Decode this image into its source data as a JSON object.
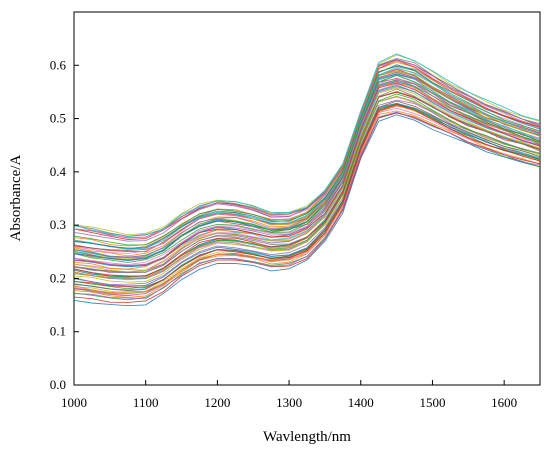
{
  "chart_data": {
    "type": "line",
    "title": "",
    "xlabel": "Wavlength/nm",
    "ylabel": "Absorbance/A",
    "xlim": [
      1000,
      1650
    ],
    "ylim": [
      0,
      0.7
    ],
    "x_ticks": [
      1000,
      1100,
      1200,
      1300,
      1400,
      1500,
      1600
    ],
    "x_tick_labels": [
      "1000",
      "1100",
      "1200",
      "1300",
      "1400",
      "1500",
      "1600"
    ],
    "y_ticks": [
      0.0,
      0.1,
      0.2,
      0.3,
      0.4,
      0.5,
      0.6
    ],
    "y_tick_labels": [
      "0.0",
      "0.1",
      "0.2",
      "0.3",
      "0.4",
      "0.5",
      "0.6"
    ],
    "grid": false,
    "legend": "none",
    "series_count": 60,
    "x": [
      1000,
      1025,
      1050,
      1075,
      1100,
      1125,
      1150,
      1175,
      1200,
      1225,
      1250,
      1275,
      1300,
      1325,
      1350,
      1375,
      1400,
      1425,
      1450,
      1475,
      1500,
      1525,
      1550,
      1575,
      1600,
      1625,
      1650
    ],
    "series": [
      {
        "values": [
          0.17,
          0.165,
          0.16,
          0.158,
          0.16,
          0.18,
          0.205,
          0.225,
          0.235,
          0.235,
          0.23,
          0.222,
          0.225,
          0.24,
          0.275,
          0.33,
          0.43,
          0.5,
          0.51,
          0.5,
          0.485,
          0.47,
          0.455,
          0.44,
          0.43,
          0.42,
          0.41
        ]
      },
      {
        "values": [
          0.2,
          0.195,
          0.19,
          0.188,
          0.19,
          0.205,
          0.23,
          0.25,
          0.26,
          0.258,
          0.252,
          0.245,
          0.248,
          0.262,
          0.295,
          0.35,
          0.45,
          0.525,
          0.535,
          0.525,
          0.508,
          0.49,
          0.475,
          0.462,
          0.45,
          0.44,
          0.43
        ]
      },
      {
        "values": [
          0.23,
          0.225,
          0.22,
          0.218,
          0.22,
          0.235,
          0.26,
          0.28,
          0.29,
          0.288,
          0.282,
          0.274,
          0.276,
          0.29,
          0.322,
          0.375,
          0.475,
          0.555,
          0.565,
          0.555,
          0.535,
          0.515,
          0.5,
          0.486,
          0.474,
          0.462,
          0.452
        ]
      },
      {
        "values": [
          0.26,
          0.255,
          0.25,
          0.248,
          0.25,
          0.265,
          0.29,
          0.31,
          0.32,
          0.318,
          0.31,
          0.3,
          0.302,
          0.316,
          0.348,
          0.4,
          0.5,
          0.58,
          0.59,
          0.58,
          0.56,
          0.54,
          0.523,
          0.507,
          0.494,
          0.482,
          0.47
        ]
      },
      {
        "values": [
          0.3,
          0.294,
          0.285,
          0.28,
          0.282,
          0.295,
          0.318,
          0.335,
          0.345,
          0.342,
          0.332,
          0.32,
          0.32,
          0.332,
          0.362,
          0.41,
          0.51,
          0.6,
          0.615,
          0.605,
          0.583,
          0.562,
          0.544,
          0.527,
          0.513,
          0.5,
          0.49
        ]
      }
    ]
  }
}
